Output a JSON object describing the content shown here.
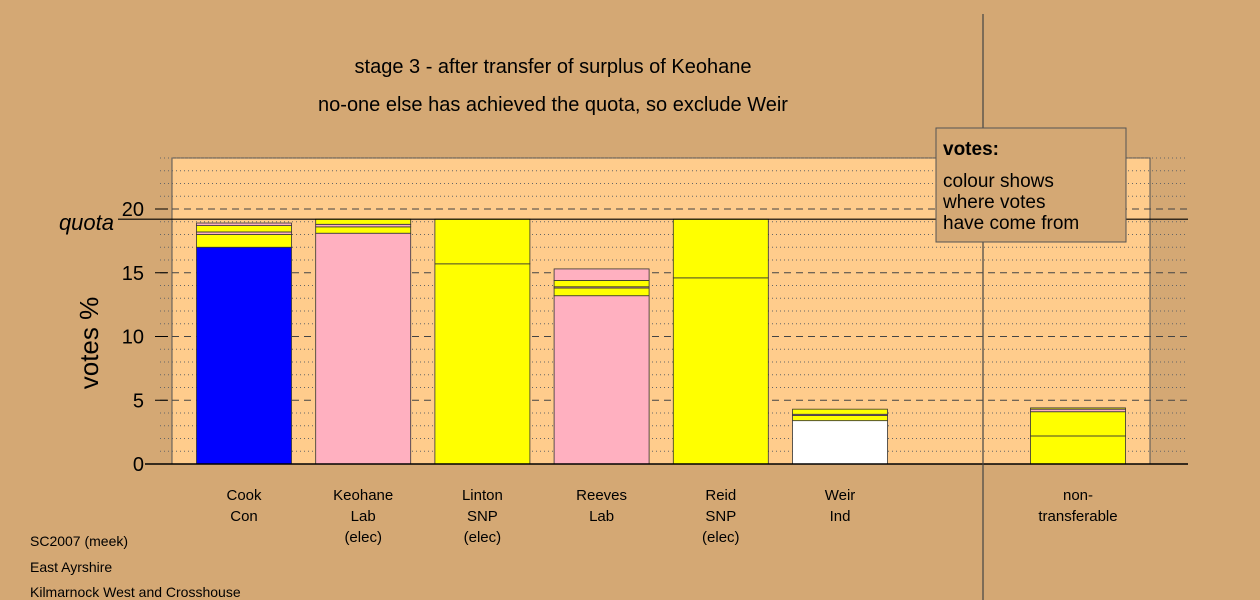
{
  "title_lines": [
    "stage 3 - after transfer of surplus of Keohane",
    "no-one else has achieved the quota, so exclude Weir"
  ],
  "legend": {
    "heading": "votes:",
    "lines": [
      "colour shows",
      "where votes",
      "have come from"
    ]
  },
  "footer": [
    "SC2007 (meek)",
    "East Ayrshire",
    "Kilmarnock West and Crosshouse"
  ],
  "colors": {
    "background": "#d4a874",
    "plot_area": "#ffcc8c",
    "Con": "#0000ff",
    "Lab": "#ffb0c0",
    "SNP": "#ffff00",
    "Ind": "#ffffff"
  },
  "chart_data": {
    "type": "bar",
    "stacked": true,
    "ylabel": "votes %",
    "quota_label": "quota",
    "quota": 19.2,
    "ylim": [
      0,
      24
    ],
    "yticks": [
      0,
      5,
      10,
      15,
      20
    ],
    "grid": true,
    "candidates": [
      {
        "label": [
          "Cook",
          "Con"
        ],
        "segments": [
          {
            "party": "Con",
            "value": 17.0
          },
          {
            "party": "SNP",
            "value": 1.0
          },
          {
            "party": "Lab",
            "value": 0.2
          },
          {
            "party": "SNP",
            "value": 0.5
          },
          {
            "party": "Lab",
            "value": 0.2
          }
        ]
      },
      {
        "label": [
          "Keohane",
          "Lab",
          "(elec)"
        ],
        "segments": [
          {
            "party": "Lab",
            "value": 18.1
          },
          {
            "party": "SNP",
            "value": 0.5
          },
          {
            "party": "Lab",
            "value": 0.2
          },
          {
            "party": "SNP",
            "value": 0.4
          }
        ]
      },
      {
        "label": [
          "Linton",
          "SNP",
          "(elec)"
        ],
        "segments": [
          {
            "party": "SNP",
            "value": 15.7
          },
          {
            "party": "SNP",
            "value": 3.5
          }
        ]
      },
      {
        "label": [
          "Reeves",
          "Lab"
        ],
        "segments": [
          {
            "party": "Lab",
            "value": 13.2
          },
          {
            "party": "SNP",
            "value": 0.6
          },
          {
            "party": "Lab",
            "value": 0.1
          },
          {
            "party": "SNP",
            "value": 0.5
          },
          {
            "party": "Lab",
            "value": 0.9
          }
        ]
      },
      {
        "label": [
          "Reid",
          "SNP",
          "(elec)"
        ],
        "segments": [
          {
            "party": "SNP",
            "value": 14.6
          },
          {
            "party": "SNP",
            "value": 4.6
          }
        ]
      },
      {
        "label": [
          "Weir",
          "Ind"
        ],
        "segments": [
          {
            "party": "Ind",
            "value": 3.4
          },
          {
            "party": "SNP",
            "value": 0.4
          },
          {
            "party": "Lab",
            "value": 0.1
          },
          {
            "party": "SNP",
            "value": 0.4
          }
        ]
      },
      {
        "label": [
          "non-",
          "transferable"
        ],
        "separated": true,
        "segments": [
          {
            "party": "SNP",
            "value": 2.2
          },
          {
            "party": "SNP",
            "value": 1.9
          },
          {
            "party": "Lab",
            "value": 0.2
          },
          {
            "party": "SNP",
            "value": 0.1
          }
        ]
      }
    ]
  }
}
